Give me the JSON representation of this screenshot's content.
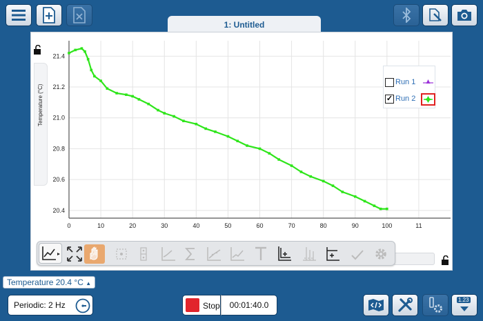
{
  "tab": {
    "title": "1: Untitled"
  },
  "icons": {
    "menu": "hamburger-icon",
    "new": "add-page-icon",
    "close": "close-file-icon",
    "bluetooth": "bluetooth-icon",
    "annotate": "pen-tool-icon",
    "camera": "camera-icon"
  },
  "colors": {
    "accent": "#1d5b91",
    "run2": "#2ee51a",
    "run1": "#9b30d9",
    "stop": "#e2242b"
  },
  "graph": {
    "ylabel": "Temperature (°C)",
    "yticks": [
      "21.4",
      "21.2",
      "21.0",
      "20.8",
      "20.6",
      "20.4"
    ],
    "xticks": [
      "0",
      "10",
      "20",
      "30",
      "40",
      "50",
      "60",
      "70",
      "80",
      "90",
      "100",
      "11"
    ]
  },
  "chart_data": {
    "type": "line",
    "ylabel": "Temperature (°C)",
    "xlabel": "",
    "xlim": [
      0,
      120
    ],
    "ylim": [
      20.35,
      21.5
    ],
    "grid": true,
    "legend": "top-right",
    "series": [
      {
        "name": "Run 1",
        "visible": false,
        "x": [],
        "y": []
      },
      {
        "name": "Run 2",
        "visible": true,
        "x": [
          0,
          2,
          4,
          5,
          6,
          7,
          8,
          10,
          12,
          15,
          18,
          20,
          22,
          25,
          28,
          30,
          33,
          36,
          40,
          43,
          46,
          50,
          53,
          56,
          60,
          63,
          66,
          70,
          73,
          76,
          80,
          83,
          86,
          90,
          93,
          96,
          98,
          100
        ],
        "y": [
          21.42,
          21.44,
          21.45,
          21.43,
          21.38,
          21.31,
          21.27,
          21.24,
          21.19,
          21.16,
          21.15,
          21.14,
          21.12,
          21.09,
          21.05,
          21.03,
          21.01,
          20.98,
          20.96,
          20.93,
          20.91,
          20.88,
          20.85,
          20.82,
          20.8,
          20.77,
          20.73,
          20.69,
          20.65,
          20.62,
          20.59,
          20.56,
          20.52,
          20.49,
          20.46,
          20.43,
          20.41,
          20.41
        ]
      }
    ]
  },
  "legend": {
    "run1": {
      "label": "Run 1",
      "checked": false,
      "mark": "☐"
    },
    "run2": {
      "label": "Run 2",
      "checked": true,
      "mark": "✓"
    }
  },
  "toolbar": {
    "items": [
      "graph-view-icon",
      "zoom-to-fit-icon",
      "pan-hand-icon",
      "select-region-icon",
      "strike-through-icon",
      "interpolate-icon",
      "statistics-icon",
      "curve-fit-icon",
      "tangent-icon",
      "annotation-text-icon",
      "add-axis-icon",
      "data-points-icon",
      "add-point-icon",
      "check-icon",
      "settings-icon"
    ]
  },
  "sensor": {
    "name": "Temperature",
    "value": "20.4",
    "unit": "°C"
  },
  "bottom": {
    "rate": "Periodic: 2 Hz",
    "stop_label": "Stop",
    "timer": "00:01:40.0",
    "meter_label": "1.23"
  }
}
